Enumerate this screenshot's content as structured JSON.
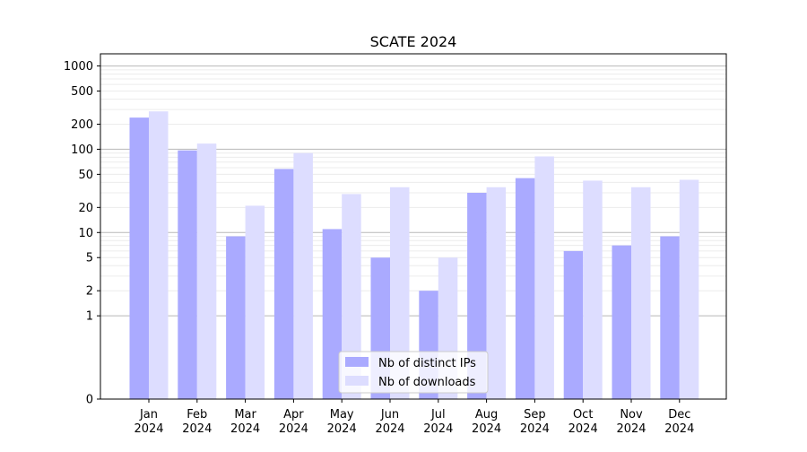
{
  "chart_data": {
    "type": "bar",
    "title": "SCATE 2024",
    "xlabel": "",
    "ylabel": "",
    "yscale": "symlog",
    "ylim": [
      0,
      1400
    ],
    "yticks": [
      0,
      1,
      2,
      5,
      10,
      20,
      50,
      100,
      200,
      500,
      1000
    ],
    "grid": "horizontal",
    "legend_position": "bottom-center",
    "categories": [
      [
        "Jan",
        "2024"
      ],
      [
        "Feb",
        "2024"
      ],
      [
        "Mar",
        "2024"
      ],
      [
        "Apr",
        "2024"
      ],
      [
        "May",
        "2024"
      ],
      [
        "Jun",
        "2024"
      ],
      [
        "Jul",
        "2024"
      ],
      [
        "Aug",
        "2024"
      ],
      [
        "Sep",
        "2024"
      ],
      [
        "Oct",
        "2024"
      ],
      [
        "Nov",
        "2024"
      ],
      [
        "Dec",
        "2024"
      ]
    ],
    "series": [
      {
        "name": "Nb of distinct IPs",
        "color": "#aaaaff",
        "values": [
          240,
          97,
          9,
          58,
          11,
          5,
          2,
          30,
          45,
          6,
          7,
          9
        ]
      },
      {
        "name": "Nb of downloads",
        "color": "#ddddff",
        "values": [
          285,
          117,
          21,
          90,
          29,
          35,
          5,
          35,
          82,
          42,
          35,
          43
        ]
      }
    ]
  }
}
